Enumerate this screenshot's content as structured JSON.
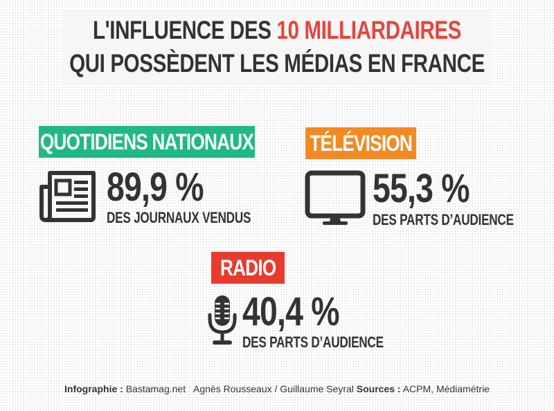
{
  "title": {
    "line1_prefix": "L'INFLUENCE DES ",
    "line1_highlight": "10 MILLIARDAIRES",
    "line2": "QUI POSSÈDENT LES MÉDIAS EN FRANCE"
  },
  "colors": {
    "highlight": "#e8433a",
    "quotidiens": "#20b983",
    "television": "#f28a21",
    "radio": "#e83a2d",
    "text": "#333333"
  },
  "sections": {
    "quotidiens": {
      "label": "QUOTIDIENS NATIONAUX",
      "icon": "newspaper-icon",
      "value": "89,9 %",
      "caption": "DES JOURNAUX VENDUS"
    },
    "television": {
      "label": "TÉLÉVISION",
      "icon": "tv-icon",
      "value": "55,3 %",
      "caption": "DES PARTS D’AUDIENCE"
    },
    "radio": {
      "label": "RADIO",
      "icon": "microphone-icon",
      "value": "40,4 %",
      "caption": "DES PARTS D’AUDIENCE"
    }
  },
  "credits": {
    "infographie_label": "Infographie :",
    "infographie_value": " Bastamag.net   Agnès Rousseaux / Guillaume Seyral ",
    "sources_label": "Sources :",
    "sources_value": " ACPM, Médiamétrie"
  }
}
